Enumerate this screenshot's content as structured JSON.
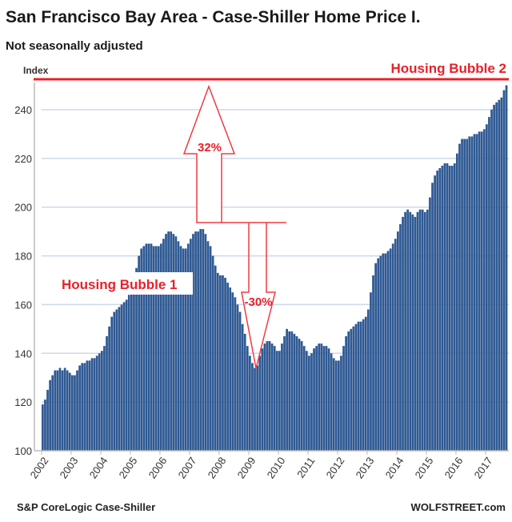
{
  "chart_data": {
    "type": "bar",
    "title": "San Francisco Bay Area - Case-Shiller Home Price I.",
    "subtitle": "Not seasonally adjusted",
    "ylabel": "Index",
    "xlabel": "",
    "ylim": [
      100,
      252
    ],
    "yticks": [
      100,
      120,
      140,
      160,
      180,
      200,
      220,
      240
    ],
    "ytick_labels": [
      "100",
      "120",
      "140",
      "160",
      "180",
      "200",
      "220",
      "240"
    ],
    "xtick_labels": [
      "2002",
      "2003",
      "2004",
      "2005",
      "2006",
      "2007",
      "2008",
      "2009",
      "2010",
      "2011",
      "2012",
      "2013",
      "2014",
      "2015",
      "2016",
      "2017"
    ],
    "start": "2002-01",
    "frequency": "monthly",
    "grid": true,
    "values": [
      119,
      121,
      125,
      129,
      131,
      133,
      133,
      134,
      133,
      134,
      133,
      132,
      131,
      131,
      133,
      135,
      136,
      136,
      137,
      137,
      138,
      138,
      139,
      140,
      141,
      143,
      147,
      151,
      155,
      157,
      158,
      159,
      160,
      161,
      162,
      164,
      166,
      170,
      175,
      180,
      183,
      184,
      185,
      185,
      185,
      184,
      184,
      184,
      185,
      187,
      189,
      190,
      190,
      189,
      188,
      186,
      184,
      183,
      183,
      185,
      187,
      189,
      190,
      190,
      191,
      191,
      189,
      186,
      184,
      180,
      176,
      173,
      172,
      172,
      171,
      169,
      167,
      165,
      163,
      160,
      157,
      152,
      148,
      143,
      139,
      136,
      134,
      135,
      139,
      142,
      144,
      145,
      145,
      144,
      143,
      141,
      141,
      144,
      147,
      150,
      149,
      149,
      148,
      147,
      146,
      145,
      143,
      141,
      139,
      140,
      142,
      143,
      144,
      144,
      143,
      143,
      142,
      140,
      138,
      137,
      137,
      139,
      143,
      147,
      149,
      150,
      151,
      152,
      153,
      153,
      154,
      155,
      158,
      165,
      172,
      177,
      179,
      180,
      181,
      181,
      182,
      183,
      185,
      187,
      190,
      193,
      196,
      198,
      199,
      198,
      197,
      196,
      198,
      199,
      199,
      198,
      199,
      204,
      210,
      213,
      215,
      216,
      217,
      218,
      218,
      217,
      217,
      218,
      222,
      226,
      228,
      228,
      228,
      229,
      229,
      230,
      230,
      231,
      231,
      232,
      234,
      237,
      240,
      242,
      243,
      244,
      245,
      248,
      250
    ],
    "annotations": {
      "bubble2_label": "Housing Bubble 2",
      "bubble2_level": 252,
      "bubble1_label": "Housing Bubble 1",
      "up_arrow_label": "32%",
      "down_arrow_label": "-30%"
    },
    "source": "S&P CoreLogic Case-Shiller",
    "credit": "WOLFSTREET.com",
    "colors": {
      "bars": "#2f5993",
      "accent": "#e8202a",
      "grid": "#cdd9ea"
    }
  }
}
